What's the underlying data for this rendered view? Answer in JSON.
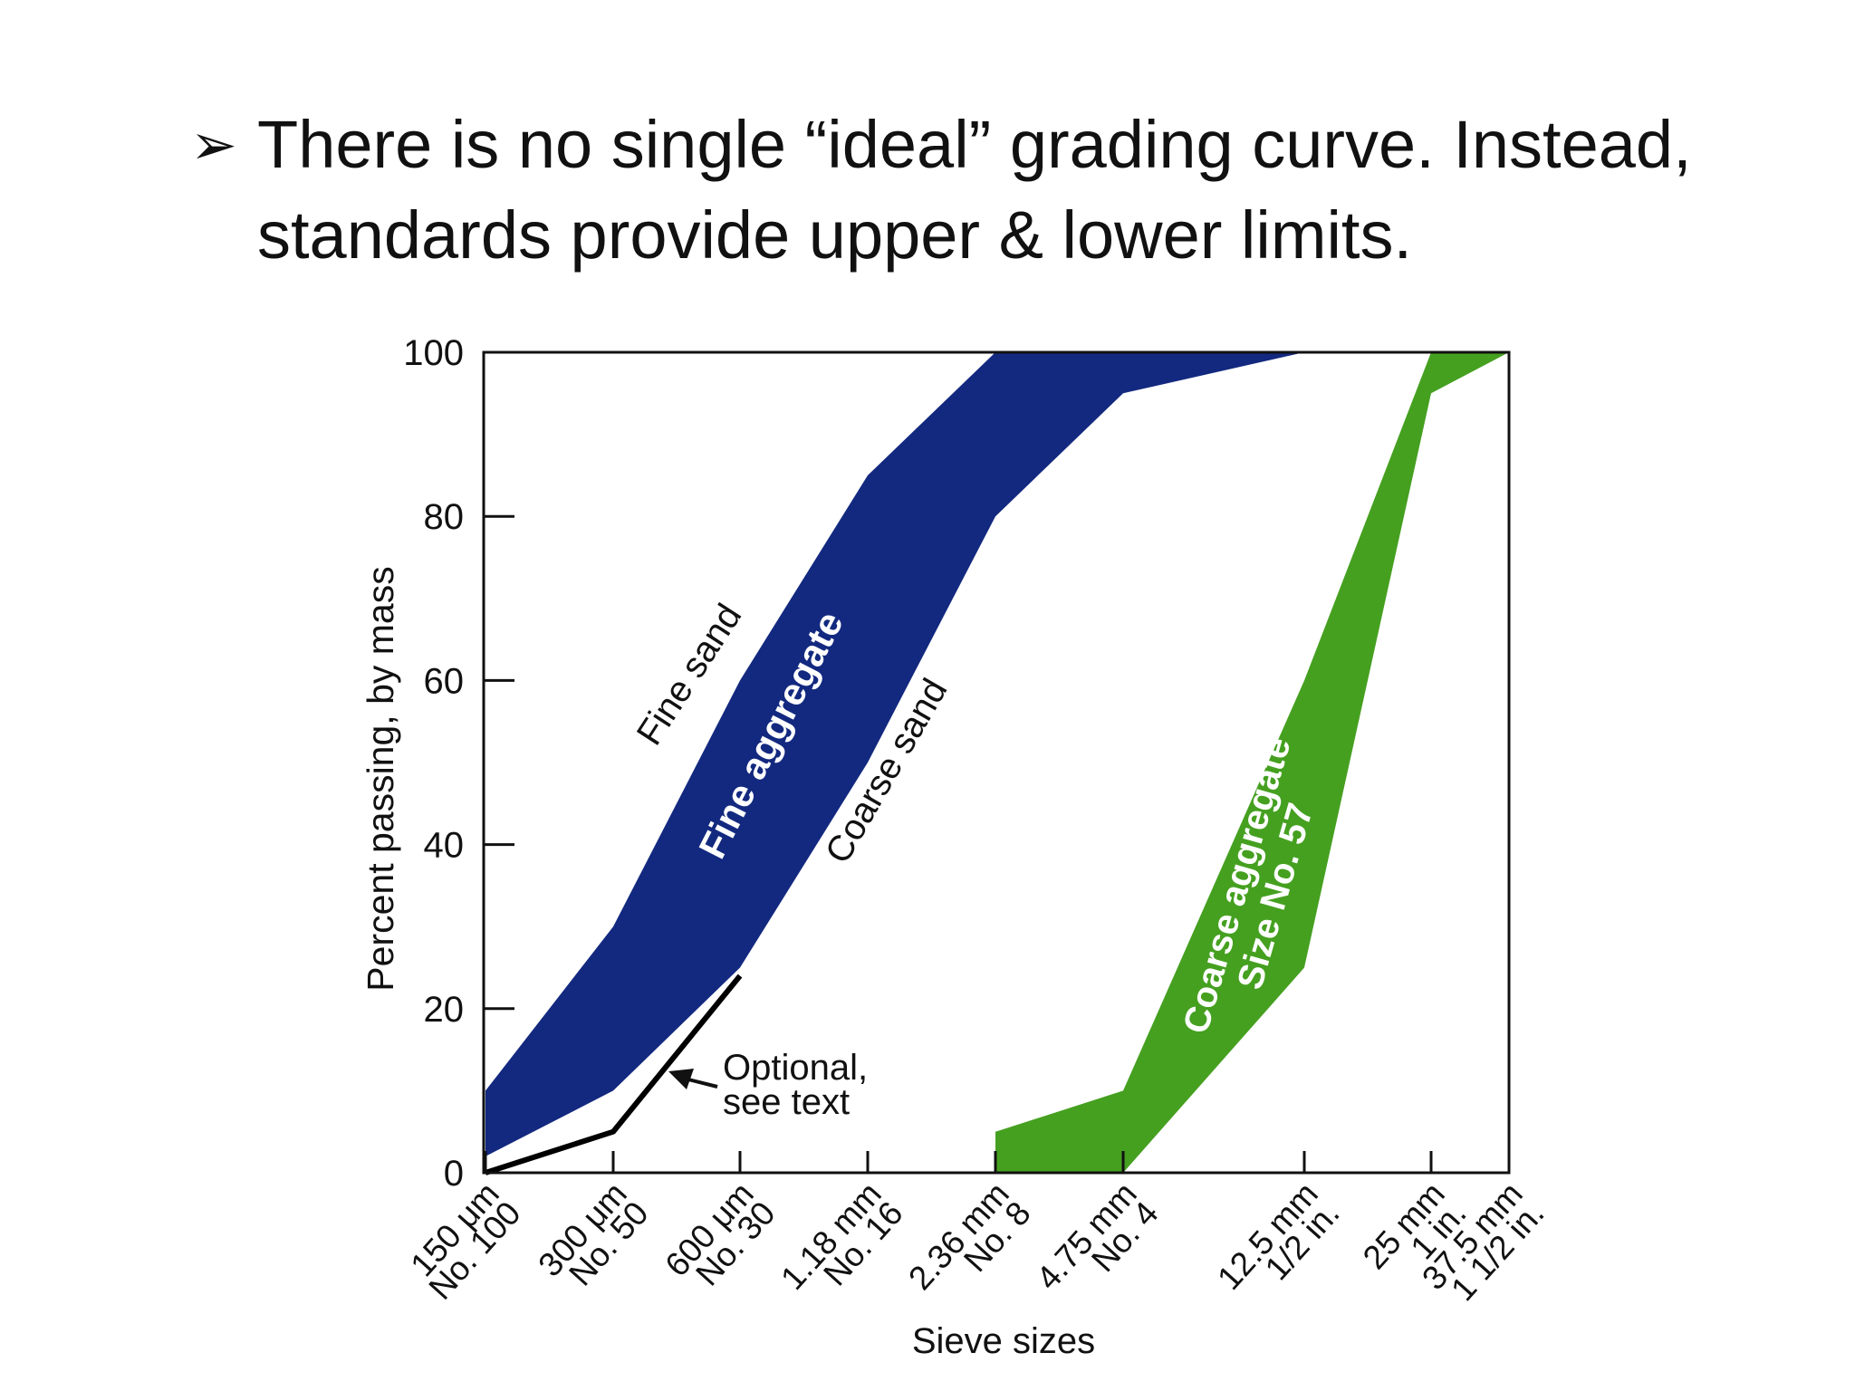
{
  "slide": {
    "bullet_marker": "➢",
    "bullet_text": "There is no single “ideal” grading curve. Instead, standards provide upper & lower limits."
  },
  "chart_data": {
    "type": "area",
    "title": "",
    "xlabel": "Sieve sizes",
    "ylabel": "Percent passing, by mass",
    "ylim": [
      0,
      100
    ],
    "yticks": [
      0,
      20,
      40,
      60,
      80,
      100
    ],
    "grid": false,
    "sieves": [
      {
        "key": "s150um",
        "line1": "150 μm",
        "line2": "No. 100"
      },
      {
        "key": "s300um",
        "line1": "300 μm",
        "line2": "No. 50"
      },
      {
        "key": "s600um",
        "line1": "600 μm",
        "line2": "No. 30"
      },
      {
        "key": "s1_18mm",
        "line1": "1.18 mm",
        "line2": "No. 16"
      },
      {
        "key": "s2_36mm",
        "line1": "2.36 mm",
        "line2": "No. 8"
      },
      {
        "key": "s4_75mm",
        "line1": "4.75 mm",
        "line2": "No. 4"
      },
      {
        "key": "s12_5mm",
        "line1": "12.5 mm",
        "line2": "1/2 in."
      },
      {
        "key": "s25mm",
        "line1": "25 mm",
        "line2": "1 in."
      },
      {
        "key": "s37_5mm",
        "line1": "37.5 mm",
        "line2": "1 1/2 in."
      }
    ],
    "series": [
      {
        "name": "Fine aggregate",
        "color": "#13297f",
        "upper": [
          {
            "x": "150 μm",
            "y": 10
          },
          {
            "x": "300 μm",
            "y": 30
          },
          {
            "x": "600 μm",
            "y": 60
          },
          {
            "x": "1.18 mm",
            "y": 85
          },
          {
            "x": "2.36 mm",
            "y": 100
          },
          {
            "x": "4.75 mm",
            "y": 100
          }
        ],
        "lower": [
          {
            "x": "150 μm",
            "y": 2
          },
          {
            "x": "300 μm",
            "y": 10
          },
          {
            "x": "600 μm",
            "y": 25
          },
          {
            "x": "1.18 mm",
            "y": 50
          },
          {
            "x": "2.36 mm",
            "y": 80
          },
          {
            "x": "4.75 mm",
            "y": 95
          },
          {
            "x": "12.5 mm",
            "y": 100
          }
        ],
        "upper_label": "Fine sand",
        "lower_label": "Coarse sand"
      },
      {
        "name": "Coarse aggregate Size No. 57",
        "name_line1": "Coarse aggregate",
        "name_line2": "Size No. 57",
        "color": "#45a020",
        "upper": [
          {
            "x": "2.36 mm",
            "y": 5
          },
          {
            "x": "4.75 mm",
            "y": 10
          },
          {
            "x": "12.5 mm",
            "y": 60
          },
          {
            "x": "25 mm",
            "y": 100
          },
          {
            "x": "37.5 mm",
            "y": 100
          }
        ],
        "lower": [
          {
            "x": "2.36 mm",
            "y": 0
          },
          {
            "x": "4.75 mm",
            "y": 0
          },
          {
            "x": "12.5 mm",
            "y": 25
          },
          {
            "x": "25 mm",
            "y": 95
          },
          {
            "x": "37.5 mm",
            "y": 100
          }
        ]
      },
      {
        "name": "Optional",
        "type": "line",
        "color": "#000000",
        "points": [
          {
            "x": "150 μm",
            "y": 0
          },
          {
            "x": "300 μm",
            "y": 5
          },
          {
            "x": "600 μm",
            "y": 24
          }
        ]
      }
    ],
    "annotations": [
      {
        "line1": "Optional,",
        "line2": "see text"
      }
    ]
  }
}
